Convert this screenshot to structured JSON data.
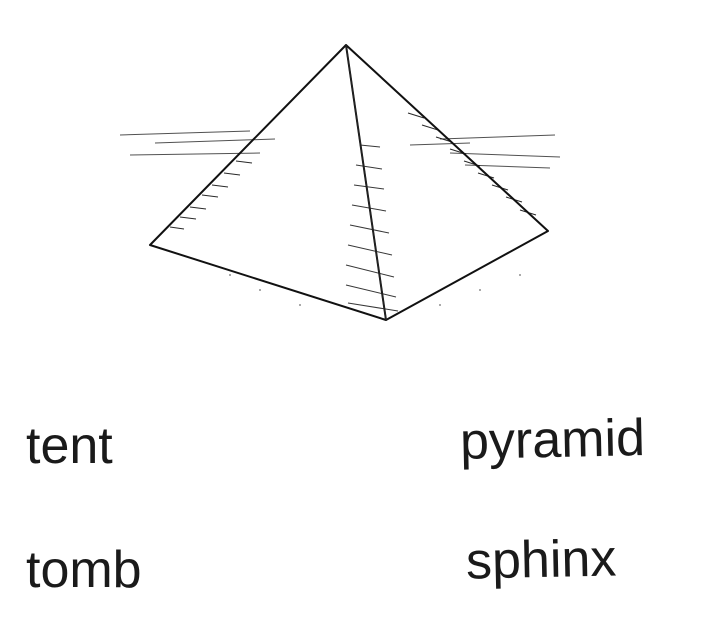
{
  "illustration": {
    "subject": "pyramid-sketch"
  },
  "words": [
    {
      "text": "tent"
    },
    {
      "text": "pyramid"
    },
    {
      "text": "tomb"
    },
    {
      "text": "sphinx"
    }
  ],
  "colors": {
    "ink": "#1a1a1a",
    "background": "#ffffff"
  }
}
